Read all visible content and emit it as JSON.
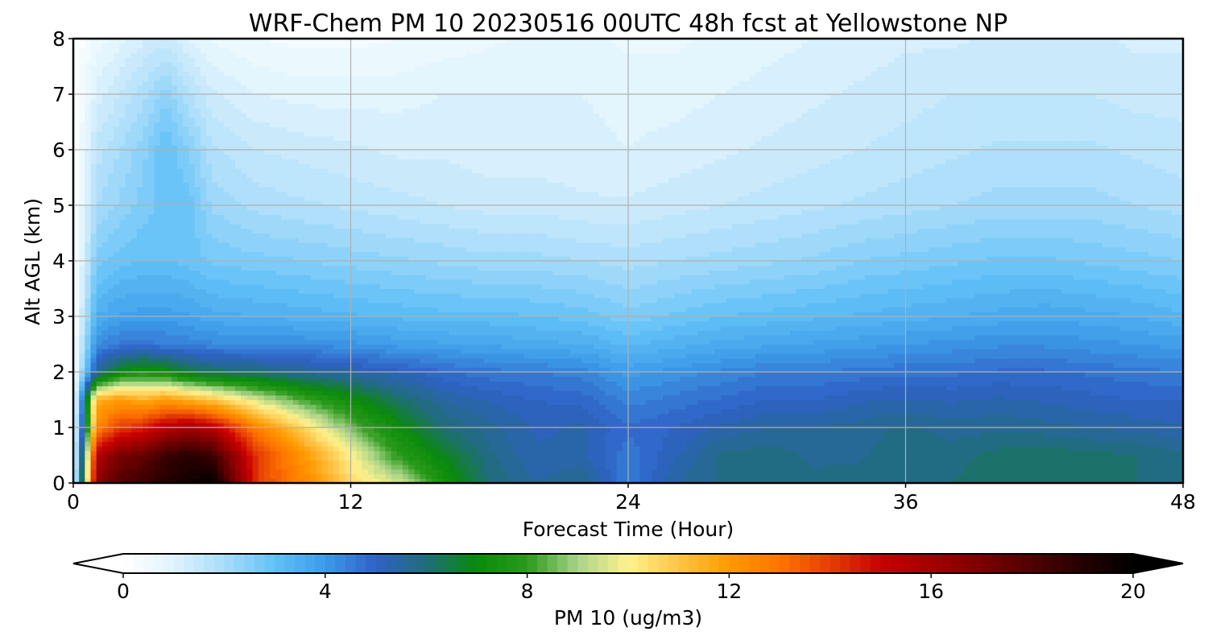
{
  "chart_data": {
    "type": "heatmap",
    "title": "WRF-Chem PM 10  20230516 00UTC 48h fcst at Yellowstone NP",
    "xlabel": "Forecast Time (Hour)",
    "ylabel": "Alt AGL (km)",
    "x_ticks": [
      "0",
      "12",
      "24",
      "36",
      "48"
    ],
    "y_ticks": [
      "0",
      "1",
      "2",
      "3",
      "4",
      "5",
      "6",
      "7",
      "8"
    ],
    "xlim": [
      0,
      48
    ],
    "ylim": [
      0,
      8
    ],
    "grid": true,
    "x": [
      0,
      1,
      2,
      3,
      4,
      5,
      6,
      8,
      10,
      12,
      14,
      16,
      18,
      20,
      22,
      24,
      26,
      28,
      30,
      32,
      34,
      36,
      38,
      40,
      42,
      44,
      46,
      48
    ],
    "y": [
      0,
      0.5,
      1,
      1.5,
      2,
      2.5,
      3,
      4,
      5,
      6,
      7,
      8
    ],
    "z": [
      [
        0,
        16.5,
        18,
        18.5,
        19,
        19.5,
        20,
        14,
        12.5,
        10.5,
        9.5,
        7.5,
        6.0,
        5.5,
        5.8,
        4.5,
        5.5,
        5.8,
        6.0,
        5.8,
        5.9,
        6.0,
        6.0,
        6.2,
        6.1,
        6.2,
        6.0,
        5.8
      ],
      [
        0,
        15.5,
        17,
        17.5,
        18.5,
        19,
        18.5,
        14,
        12,
        10,
        8.0,
        6.8,
        5.8,
        5.3,
        5.3,
        4.6,
        5.2,
        5.8,
        5.9,
        5.7,
        5.7,
        6.0,
        5.9,
        6.1,
        6.2,
        6.1,
        6.0,
        5.8
      ],
      [
        0,
        12.5,
        14,
        14.5,
        15.5,
        16,
        15.5,
        12.5,
        10.5,
        8.5,
        7.2,
        6.0,
        5.6,
        5.2,
        5.3,
        4.8,
        5.0,
        5.3,
        5.5,
        5.5,
        5.6,
        5.8,
        5.6,
        5.7,
        5.6,
        5.5,
        5.4,
        5.3
      ],
      [
        0,
        11.5,
        12,
        11.5,
        12,
        11.5,
        11.0,
        9.5,
        8.2,
        7.2,
        6.2,
        5.5,
        5.2,
        5.0,
        4.9,
        4.4,
        4.6,
        4.8,
        5.0,
        5.0,
        5.2,
        5.3,
        5.2,
        5.3,
        5.2,
        5.1,
        5.0,
        5.0
      ],
      [
        0,
        5.5,
        7.0,
        7.5,
        7.2,
        6.5,
        6.2,
        6.0,
        5.6,
        5.4,
        5.1,
        4.8,
        4.6,
        4.5,
        4.4,
        3.9,
        4.1,
        4.3,
        4.5,
        4.5,
        4.6,
        4.7,
        4.7,
        4.8,
        4.8,
        4.7,
        4.6,
        4.5
      ],
      [
        0,
        4.2,
        4.6,
        4.6,
        4.5,
        4.4,
        4.3,
        4.2,
        4.2,
        4.1,
        3.9,
        3.8,
        3.7,
        3.6,
        3.5,
        3.2,
        3.4,
        3.6,
        3.7,
        3.8,
        3.9,
        4.0,
        4.1,
        4.2,
        4.2,
        4.1,
        4.0,
        3.9
      ],
      [
        0,
        3.5,
        3.8,
        3.9,
        3.9,
        3.8,
        3.6,
        3.5,
        3.4,
        3.3,
        3.2,
        3.1,
        3.1,
        3.0,
        2.9,
        2.6,
        2.8,
        3.0,
        3.1,
        3.2,
        3.3,
        3.4,
        3.5,
        3.6,
        3.7,
        3.6,
        3.5,
        3.3
      ],
      [
        0,
        2.6,
        2.9,
        3.0,
        3.0,
        2.9,
        2.7,
        2.6,
        2.5,
        2.4,
        2.3,
        2.2,
        2.1,
        2.1,
        2.0,
        1.9,
        2.0,
        2.1,
        2.2,
        2.3,
        2.5,
        2.6,
        2.7,
        2.8,
        2.8,
        2.7,
        2.6,
        2.5
      ],
      [
        0,
        2.0,
        2.3,
        2.6,
        2.9,
        2.9,
        2.2,
        1.9,
        1.8,
        1.7,
        1.6,
        1.5,
        1.4,
        1.4,
        1.3,
        1.3,
        1.4,
        1.5,
        1.6,
        1.7,
        1.8,
        1.9,
        2.0,
        2.1,
        2.1,
        2.1,
        2.0,
        1.9
      ],
      [
        0,
        1.6,
        2.0,
        2.4,
        3.0,
        2.5,
        1.8,
        1.5,
        1.4,
        1.3,
        1.2,
        1.2,
        1.1,
        1.1,
        1.1,
        1.0,
        1.1,
        1.2,
        1.3,
        1.4,
        1.5,
        1.6,
        1.7,
        1.8,
        1.8,
        1.8,
        1.7,
        1.6
      ],
      [
        0,
        1.1,
        1.5,
        1.9,
        2.4,
        1.8,
        1.3,
        1.0,
        0.9,
        0.9,
        0.9,
        1.0,
        1.0,
        1.0,
        1.0,
        0.9,
        0.9,
        1.0,
        1.1,
        1.2,
        1.3,
        1.4,
        1.5,
        1.5,
        1.5,
        1.5,
        1.4,
        1.4
      ],
      [
        0,
        0.6,
        0.9,
        1.2,
        1.4,
        1.0,
        0.7,
        0.5,
        0.4,
        0.4,
        0.5,
        0.6,
        0.7,
        0.8,
        0.8,
        0.7,
        0.7,
        0.8,
        0.9,
        1.0,
        1.1,
        1.2,
        1.2,
        1.3,
        1.3,
        1.3,
        1.2,
        1.2
      ]
    ],
    "colorbar": {
      "label": "PM 10  (ug/m3)",
      "ticks": [
        "0",
        "4",
        "8",
        "12",
        "16",
        "20"
      ],
      "range": [
        0,
        20
      ],
      "extend": "both",
      "colormap": [
        [
          0,
          "#ffffff"
        ],
        [
          1,
          "#dff3fd"
        ],
        [
          2,
          "#a8dcfa"
        ],
        [
          3,
          "#62c1f7"
        ],
        [
          4,
          "#3d9ae8"
        ],
        [
          5,
          "#2f62c6"
        ],
        [
          6,
          "#206d79"
        ],
        [
          7,
          "#0a8a0a"
        ],
        [
          8,
          "#2a9a1c"
        ],
        [
          9,
          "#a9d487"
        ],
        [
          10,
          "#fff28e"
        ],
        [
          11,
          "#ffc446"
        ],
        [
          12,
          "#ff9a00"
        ],
        [
          13,
          "#ff7400"
        ],
        [
          14,
          "#e53e05"
        ],
        [
          15,
          "#c90000"
        ],
        [
          16,
          "#a30000"
        ],
        [
          17,
          "#7a0000"
        ],
        [
          18,
          "#500000"
        ],
        [
          19,
          "#250000"
        ],
        [
          20,
          "#000000"
        ]
      ]
    }
  }
}
